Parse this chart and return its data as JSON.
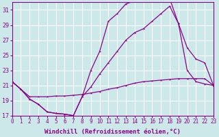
{
  "background_color": "#cce8e8",
  "grid_color": "#ffffff",
  "line_color": "#8b008b",
  "marker": "*",
  "xlabel": "Windchill (Refroidissement éolien,°C)",
  "xlabel_fontsize": 6.5,
  "xtick_fontsize": 5.5,
  "ytick_fontsize": 6.0,
  "xmin": 0,
  "xmax": 23,
  "ymin": 17,
  "ymax": 32,
  "yticks": [
    17,
    19,
    21,
    23,
    25,
    27,
    29,
    31
  ],
  "xticks": [
    0,
    1,
    2,
    3,
    4,
    5,
    6,
    7,
    8,
    9,
    10,
    11,
    12,
    13,
    14,
    15,
    16,
    17,
    18,
    19,
    20,
    21,
    22,
    23
  ],
  "line1_x": [
    0,
    1,
    2,
    3,
    4,
    5,
    6,
    7,
    8,
    9,
    10,
    11,
    12,
    13,
    14,
    15,
    16,
    17,
    18,
    19,
    20,
    21,
    22,
    23
  ],
  "line1_y": [
    21.5,
    20.5,
    19.2,
    18.5,
    17.5,
    17.3,
    17.2,
    17.0,
    19.5,
    23.0,
    25.5,
    29.5,
    30.5,
    31.8,
    32.2,
    32.5,
    32.3,
    32.2,
    32.5,
    29.2,
    23.0,
    21.5,
    21.2,
    21.0
  ],
  "line2_x": [
    0,
    1,
    2,
    3,
    4,
    5,
    6,
    7,
    8,
    9,
    10,
    11,
    12,
    13,
    14,
    15,
    16,
    17,
    18,
    19,
    20,
    21,
    22,
    23
  ],
  "line2_y": [
    21.5,
    20.5,
    19.2,
    18.5,
    17.5,
    17.3,
    17.2,
    17.0,
    19.5,
    20.8,
    22.5,
    24.0,
    25.5,
    27.0,
    28.0,
    28.5,
    29.5,
    30.5,
    31.5,
    29.2,
    26.0,
    24.5,
    24.0,
    21.0
  ],
  "line3_x": [
    0,
    1,
    2,
    3,
    4,
    5,
    6,
    7,
    8,
    9,
    10,
    11,
    12,
    13,
    14,
    15,
    16,
    17,
    18,
    19,
    20,
    21,
    22,
    23
  ],
  "line3_y": [
    21.5,
    20.5,
    19.5,
    19.5,
    19.5,
    19.6,
    19.6,
    19.7,
    19.8,
    20.0,
    20.2,
    20.5,
    20.7,
    21.0,
    21.3,
    21.5,
    21.6,
    21.7,
    21.8,
    21.9,
    21.9,
    21.9,
    21.9,
    21.0
  ]
}
